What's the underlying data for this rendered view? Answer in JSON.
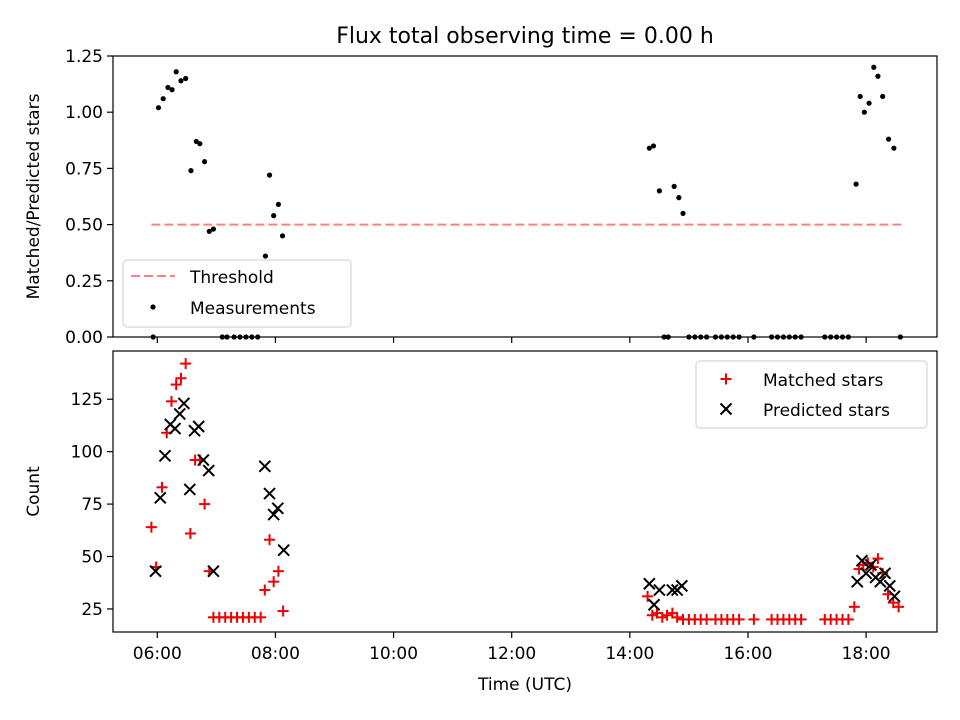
{
  "title": "Flux total observing time = 0.00 h",
  "colors": {
    "threshold": "#ff8080",
    "measurements": "#000000",
    "matched": "#ee0000",
    "predicted": "#000000"
  },
  "chart_data": [
    {
      "type": "scatter",
      "ylabel": "Matched/Predicted stars",
      "xlim": [
        5.25,
        19.2
      ],
      "ylim": [
        0,
        1.25
      ],
      "yticks": [
        0,
        0.25,
        0.5,
        0.75,
        1.0,
        1.25
      ],
      "ytick_labels": [
        "0.00",
        "0.25",
        "0.50",
        "0.75",
        "1.00",
        "1.25"
      ],
      "xticks": [
        6,
        8,
        10,
        12,
        14,
        16,
        18
      ],
      "legend_position": "lower-left",
      "threshold": {
        "name": "Threshold",
        "x": [
          5.9,
          18.6
        ],
        "y": 0.5
      },
      "series": [
        {
          "name": "Measurements",
          "points": [
            [
              5.93,
              0.0
            ],
            [
              6.02,
              1.02
            ],
            [
              6.1,
              1.06
            ],
            [
              6.18,
              1.11
            ],
            [
              6.25,
              1.1
            ],
            [
              6.32,
              1.18
            ],
            [
              6.4,
              1.14
            ],
            [
              6.48,
              1.15
            ],
            [
              6.57,
              0.74
            ],
            [
              6.66,
              0.87
            ],
            [
              6.72,
              0.86
            ],
            [
              6.8,
              0.78
            ],
            [
              6.88,
              0.47
            ],
            [
              6.95,
              0.48
            ],
            [
              7.1,
              0.0
            ],
            [
              7.18,
              0.0
            ],
            [
              7.3,
              0.0
            ],
            [
              7.4,
              0.0
            ],
            [
              7.5,
              0.0
            ],
            [
              7.6,
              0.0
            ],
            [
              7.7,
              0.0
            ],
            [
              7.83,
              0.36
            ],
            [
              7.9,
              0.72
            ],
            [
              7.97,
              0.54
            ],
            [
              8.05,
              0.59
            ],
            [
              8.12,
              0.45
            ],
            [
              14.33,
              0.84
            ],
            [
              14.4,
              0.85
            ],
            [
              14.5,
              0.65
            ],
            [
              14.58,
              0.0
            ],
            [
              14.65,
              0.0
            ],
            [
              14.75,
              0.67
            ],
            [
              14.83,
              0.62
            ],
            [
              14.9,
              0.55
            ],
            [
              15.0,
              0.0
            ],
            [
              15.1,
              0.0
            ],
            [
              15.2,
              0.0
            ],
            [
              15.3,
              0.0
            ],
            [
              15.45,
              0.0
            ],
            [
              15.55,
              0.0
            ],
            [
              15.65,
              0.0
            ],
            [
              15.75,
              0.0
            ],
            [
              15.85,
              0.0
            ],
            [
              16.1,
              0.0
            ],
            [
              16.4,
              0.0
            ],
            [
              16.5,
              0.0
            ],
            [
              16.6,
              0.0
            ],
            [
              16.7,
              0.0
            ],
            [
              16.8,
              0.0
            ],
            [
              16.9,
              0.0
            ],
            [
              17.3,
              0.0
            ],
            [
              17.4,
              0.0
            ],
            [
              17.5,
              0.0
            ],
            [
              17.6,
              0.0
            ],
            [
              17.7,
              0.0
            ],
            [
              17.83,
              0.68
            ],
            [
              17.9,
              1.07
            ],
            [
              17.97,
              1.0
            ],
            [
              18.05,
              1.04
            ],
            [
              18.13,
              1.2
            ],
            [
              18.2,
              1.16
            ],
            [
              18.28,
              1.07
            ],
            [
              18.38,
              0.88
            ],
            [
              18.47,
              0.84
            ],
            [
              18.58,
              0.0
            ]
          ]
        }
      ]
    },
    {
      "type": "scatter",
      "xlabel": "Time (UTC)",
      "ylabel": "Count",
      "xlim": [
        5.25,
        19.2
      ],
      "ylim": [
        14,
        148
      ],
      "yticks": [
        25,
        50,
        75,
        100,
        125
      ],
      "xticks": [
        6,
        8,
        10,
        12,
        14,
        16,
        18
      ],
      "xtick_labels": [
        "06:00",
        "08:00",
        "10:00",
        "12:00",
        "14:00",
        "16:00",
        "18:00"
      ],
      "legend_position": "upper-right",
      "series": [
        {
          "name": "Matched stars",
          "marker": "+",
          "points": [
            [
              5.9,
              64
            ],
            [
              5.98,
              45
            ],
            [
              6.08,
              83
            ],
            [
              6.16,
              109
            ],
            [
              6.24,
              124
            ],
            [
              6.32,
              132
            ],
            [
              6.4,
              135
            ],
            [
              6.48,
              142
            ],
            [
              6.56,
              61
            ],
            [
              6.64,
              96
            ],
            [
              6.72,
              96
            ],
            [
              6.8,
              75
            ],
            [
              6.88,
              43
            ],
            [
              6.95,
              21
            ],
            [
              7.05,
              21
            ],
            [
              7.15,
              21
            ],
            [
              7.25,
              21
            ],
            [
              7.35,
              21
            ],
            [
              7.45,
              21
            ],
            [
              7.55,
              21
            ],
            [
              7.65,
              21
            ],
            [
              7.75,
              21
            ],
            [
              7.82,
              34
            ],
            [
              7.9,
              58
            ],
            [
              7.97,
              38
            ],
            [
              8.05,
              43
            ],
            [
              8.13,
              24
            ],
            [
              14.3,
              31
            ],
            [
              14.38,
              22
            ],
            [
              14.46,
              23
            ],
            [
              14.55,
              21
            ],
            [
              14.63,
              22
            ],
            [
              14.72,
              23
            ],
            [
              14.8,
              21
            ],
            [
              14.9,
              20
            ],
            [
              15.0,
              20
            ],
            [
              15.1,
              20
            ],
            [
              15.2,
              20
            ],
            [
              15.3,
              20
            ],
            [
              15.45,
              20
            ],
            [
              15.55,
              20
            ],
            [
              15.65,
              20
            ],
            [
              15.75,
              20
            ],
            [
              15.85,
              20
            ],
            [
              16.1,
              20
            ],
            [
              16.4,
              20
            ],
            [
              16.5,
              20
            ],
            [
              16.6,
              20
            ],
            [
              16.7,
              20
            ],
            [
              16.8,
              20
            ],
            [
              16.9,
              20
            ],
            [
              17.3,
              20
            ],
            [
              17.4,
              20
            ],
            [
              17.5,
              20
            ],
            [
              17.6,
              20
            ],
            [
              17.7,
              20
            ],
            [
              17.8,
              26
            ],
            [
              17.88,
              44
            ],
            [
              17.95,
              46
            ],
            [
              18.03,
              47
            ],
            [
              18.12,
              45
            ],
            [
              18.2,
              49
            ],
            [
              18.28,
              42
            ],
            [
              18.37,
              32
            ],
            [
              18.46,
              28
            ],
            [
              18.55,
              26
            ]
          ]
        },
        {
          "name": "Predicted stars",
          "marker": "x",
          "points": [
            [
              5.97,
              43
            ],
            [
              6.05,
              78
            ],
            [
              6.13,
              98
            ],
            [
              6.22,
              113
            ],
            [
              6.3,
              111
            ],
            [
              6.38,
              118
            ],
            [
              6.45,
              123
            ],
            [
              6.55,
              82
            ],
            [
              6.63,
              110
            ],
            [
              6.7,
              112
            ],
            [
              6.78,
              96
            ],
            [
              6.87,
              91
            ],
            [
              6.95,
              43
            ],
            [
              7.82,
              93
            ],
            [
              7.9,
              80
            ],
            [
              7.97,
              70
            ],
            [
              8.04,
              73
            ],
            [
              8.14,
              53
            ],
            [
              14.33,
              37
            ],
            [
              14.41,
              27
            ],
            [
              14.5,
              34
            ],
            [
              14.72,
              34
            ],
            [
              14.8,
              34
            ],
            [
              14.88,
              36
            ],
            [
              17.85,
              38
            ],
            [
              17.93,
              48
            ],
            [
              18.0,
              42
            ],
            [
              18.08,
              46
            ],
            [
              18.16,
              40
            ],
            [
              18.24,
              38
            ],
            [
              18.32,
              42
            ],
            [
              18.4,
              36
            ],
            [
              18.48,
              31
            ]
          ]
        }
      ]
    }
  ]
}
